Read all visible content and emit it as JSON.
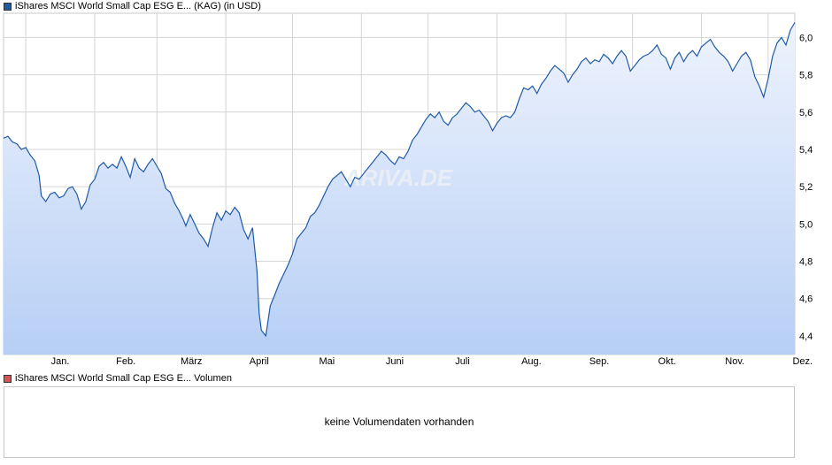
{
  "price_legend": {
    "label": "iShares MSCI World Small Cap ESG E... (KAG) (in USD)",
    "swatch_color": "#1f5aa6"
  },
  "volume_legend": {
    "label": "iShares MSCI World Small Cap ESG E... Volumen",
    "swatch_color": "#d9534f"
  },
  "watermark": "ARIVA.DE",
  "volume_panel": {
    "message": "keine Volumendaten vorhanden"
  },
  "colors": {
    "line": "#1f5aa6",
    "fill_top": "#eef3fd",
    "fill_bottom": "#b7cff5",
    "grid": "#d4d4d4"
  },
  "chart_data": {
    "type": "area",
    "title": "iShares MSCI World Small Cap ESG E... (KAG) (in USD)",
    "xlabel": "",
    "ylabel": "",
    "ylim": [
      4.3,
      6.13
    ],
    "yticks": [
      4.4,
      4.6,
      4.8,
      5.0,
      5.2,
      5.4,
      5.6,
      5.8,
      6.0
    ],
    "ytick_labels": [
      "4,4",
      "4,6",
      "4,8",
      "5,0",
      "5,2",
      "5,4",
      "5,6",
      "5,8",
      "6,0"
    ],
    "xlim": [
      0,
      356
    ],
    "month_starts": [
      10,
      41,
      69,
      100,
      130,
      161,
      191,
      222,
      253,
      283,
      314,
      344
    ],
    "month_labels": [
      "Jan.",
      "Feb.",
      "März",
      "April",
      "Mai",
      "Juni",
      "Juli",
      "Aug.",
      "Sep.",
      "Okt.",
      "Nov.",
      "Dez."
    ],
    "grid": true,
    "legend": "top-left",
    "series": [
      {
        "name": "iShares MSCI World Small Cap ESG E... (KAG) (in USD)",
        "points": [
          [
            0,
            5.46
          ],
          [
            2,
            5.47
          ],
          [
            4,
            5.44
          ],
          [
            6,
            5.43
          ],
          [
            8,
            5.4
          ],
          [
            10,
            5.41
          ],
          [
            12,
            5.37
          ],
          [
            14,
            5.34
          ],
          [
            16,
            5.26
          ],
          [
            17,
            5.15
          ],
          [
            19,
            5.12
          ],
          [
            21,
            5.16
          ],
          [
            23,
            5.17
          ],
          [
            25,
            5.14
          ],
          [
            27,
            5.15
          ],
          [
            29,
            5.19
          ],
          [
            31,
            5.2
          ],
          [
            33,
            5.16
          ],
          [
            35,
            5.08
          ],
          [
            37,
            5.12
          ],
          [
            39,
            5.21
          ],
          [
            41,
            5.24
          ],
          [
            43,
            5.31
          ],
          [
            45,
            5.33
          ],
          [
            47,
            5.3
          ],
          [
            49,
            5.32
          ],
          [
            51,
            5.3
          ],
          [
            53,
            5.36
          ],
          [
            55,
            5.31
          ],
          [
            57,
            5.25
          ],
          [
            59,
            5.35
          ],
          [
            61,
            5.3
          ],
          [
            63,
            5.28
          ],
          [
            65,
            5.32
          ],
          [
            67,
            5.35
          ],
          [
            69,
            5.31
          ],
          [
            71,
            5.27
          ],
          [
            73,
            5.19
          ],
          [
            75,
            5.17
          ],
          [
            77,
            5.11
          ],
          [
            79,
            5.07
          ],
          [
            81,
            5.02
          ],
          [
            82,
            4.99
          ],
          [
            84,
            5.05
          ],
          [
            86,
            5.0
          ],
          [
            88,
            4.95
          ],
          [
            90,
            4.92
          ],
          [
            92,
            4.88
          ],
          [
            94,
            4.98
          ],
          [
            96,
            5.06
          ],
          [
            98,
            5.02
          ],
          [
            100,
            5.07
          ],
          [
            102,
            5.05
          ],
          [
            104,
            5.09
          ],
          [
            106,
            5.06
          ],
          [
            108,
            4.97
          ],
          [
            110,
            4.92
          ],
          [
            112,
            4.98
          ],
          [
            114,
            4.75
          ],
          [
            115,
            4.52
          ],
          [
            116,
            4.43
          ],
          [
            118,
            4.4
          ],
          [
            120,
            4.56
          ],
          [
            122,
            4.62
          ],
          [
            124,
            4.68
          ],
          [
            126,
            4.73
          ],
          [
            128,
            4.78
          ],
          [
            130,
            4.84
          ],
          [
            132,
            4.92
          ],
          [
            134,
            4.95
          ],
          [
            136,
            4.98
          ],
          [
            138,
            5.04
          ],
          [
            140,
            5.06
          ],
          [
            142,
            5.1
          ],
          [
            144,
            5.15
          ],
          [
            146,
            5.2
          ],
          [
            148,
            5.24
          ],
          [
            150,
            5.26
          ],
          [
            152,
            5.28
          ],
          [
            154,
            5.24
          ],
          [
            156,
            5.2
          ],
          [
            158,
            5.25
          ],
          [
            160,
            5.24
          ],
          [
            162,
            5.27
          ],
          [
            164,
            5.3
          ],
          [
            166,
            5.33
          ],
          [
            168,
            5.36
          ],
          [
            170,
            5.39
          ],
          [
            172,
            5.37
          ],
          [
            174,
            5.34
          ],
          [
            176,
            5.32
          ],
          [
            178,
            5.36
          ],
          [
            180,
            5.35
          ],
          [
            182,
            5.39
          ],
          [
            184,
            5.45
          ],
          [
            186,
            5.48
          ],
          [
            188,
            5.52
          ],
          [
            190,
            5.56
          ],
          [
            192,
            5.59
          ],
          [
            194,
            5.57
          ],
          [
            196,
            5.6
          ],
          [
            198,
            5.55
          ],
          [
            200,
            5.53
          ],
          [
            202,
            5.57
          ],
          [
            204,
            5.59
          ],
          [
            206,
            5.62
          ],
          [
            208,
            5.65
          ],
          [
            210,
            5.63
          ],
          [
            212,
            5.6
          ],
          [
            214,
            5.61
          ],
          [
            216,
            5.58
          ],
          [
            218,
            5.55
          ],
          [
            220,
            5.5
          ],
          [
            222,
            5.54
          ],
          [
            224,
            5.57
          ],
          [
            226,
            5.58
          ],
          [
            228,
            5.57
          ],
          [
            230,
            5.6
          ],
          [
            232,
            5.67
          ],
          [
            234,
            5.73
          ],
          [
            236,
            5.72
          ],
          [
            238,
            5.74
          ],
          [
            240,
            5.7
          ],
          [
            242,
            5.75
          ],
          [
            244,
            5.78
          ],
          [
            246,
            5.82
          ],
          [
            248,
            5.85
          ],
          [
            250,
            5.83
          ],
          [
            252,
            5.81
          ],
          [
            254,
            5.76
          ],
          [
            256,
            5.8
          ],
          [
            258,
            5.83
          ],
          [
            260,
            5.87
          ],
          [
            262,
            5.89
          ],
          [
            264,
            5.86
          ],
          [
            266,
            5.88
          ],
          [
            268,
            5.87
          ],
          [
            270,
            5.91
          ],
          [
            272,
            5.89
          ],
          [
            274,
            5.86
          ],
          [
            276,
            5.9
          ],
          [
            278,
            5.93
          ],
          [
            280,
            5.9
          ],
          [
            282,
            5.82
          ],
          [
            284,
            5.85
          ],
          [
            286,
            5.88
          ],
          [
            288,
            5.9
          ],
          [
            290,
            5.91
          ],
          [
            292,
            5.93
          ],
          [
            294,
            5.96
          ],
          [
            296,
            5.91
          ],
          [
            298,
            5.89
          ],
          [
            300,
            5.83
          ],
          [
            302,
            5.89
          ],
          [
            304,
            5.92
          ],
          [
            306,
            5.87
          ],
          [
            308,
            5.91
          ],
          [
            310,
            5.93
          ],
          [
            312,
            5.9
          ],
          [
            314,
            5.95
          ],
          [
            316,
            5.97
          ],
          [
            318,
            5.99
          ],
          [
            320,
            5.95
          ],
          [
            322,
            5.92
          ],
          [
            324,
            5.9
          ],
          [
            326,
            5.87
          ],
          [
            328,
            5.82
          ],
          [
            330,
            5.86
          ],
          [
            332,
            5.9
          ],
          [
            334,
            5.92
          ],
          [
            336,
            5.88
          ],
          [
            338,
            5.79
          ],
          [
            340,
            5.74
          ],
          [
            342,
            5.68
          ],
          [
            344,
            5.78
          ],
          [
            346,
            5.9
          ],
          [
            348,
            5.97
          ],
          [
            350,
            6.0
          ],
          [
            352,
            5.96
          ],
          [
            354,
            6.04
          ],
          [
            356,
            6.08
          ]
        ]
      }
    ]
  }
}
